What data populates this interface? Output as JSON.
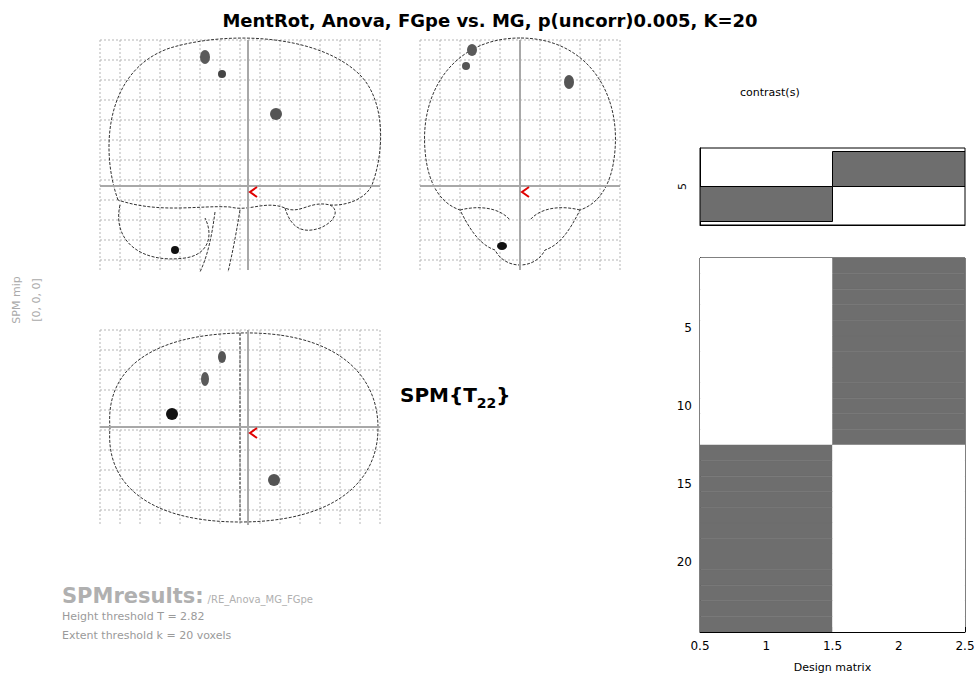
{
  "title": "MentRot, Anova, FGpe vs. MG, p(uncorr)0.005, K=20",
  "mip": {
    "label": "SPM mip",
    "coordinates": "[0, 0, 0]"
  },
  "statistic": {
    "prefix": "SPM{T",
    "subscript": "22",
    "suffix": "}"
  },
  "results": {
    "heading": "SPMresults:",
    "path": "/RE_Anova_MG_FGpe",
    "height_threshold": "Height threshold T = 2.82",
    "extent_threshold": "Extent threshold k = 20 voxels"
  },
  "chart_data": [
    {
      "type": "bar",
      "title": "contrast(s)",
      "ylabel": "5",
      "x": [
        1,
        2
      ],
      "values": [
        -1,
        1
      ],
      "xlim": [
        0.5,
        2.5
      ],
      "ylim": [
        -1.1,
        1.1
      ],
      "tick_labels": false,
      "color": "#6e6e6e"
    },
    {
      "type": "heatmap",
      "xlabel": "Design matrix",
      "cells": [
        [
          0,
          1
        ],
        [
          0,
          1
        ],
        [
          0,
          1
        ],
        [
          0,
          1
        ],
        [
          0,
          1
        ],
        [
          0,
          1
        ],
        [
          0,
          1
        ],
        [
          0,
          1
        ],
        [
          0,
          1
        ],
        [
          0,
          1
        ],
        [
          0,
          1
        ],
        [
          0,
          1
        ],
        [
          1,
          0
        ],
        [
          1,
          0
        ],
        [
          1,
          0
        ],
        [
          1,
          0
        ],
        [
          1,
          0
        ],
        [
          1,
          0
        ],
        [
          1,
          0
        ],
        [
          1,
          0
        ],
        [
          1,
          0
        ],
        [
          1,
          0
        ],
        [
          1,
          0
        ],
        [
          1,
          0
        ]
      ],
      "xlim": [
        0.5,
        2.5
      ],
      "xticks": [
        0.5,
        1,
        1.5,
        2,
        2.5
      ],
      "ylim": [
        0.5,
        24.5
      ],
      "yticks": [
        5,
        10,
        15,
        20
      ],
      "color": "#6e6e6e"
    }
  ]
}
